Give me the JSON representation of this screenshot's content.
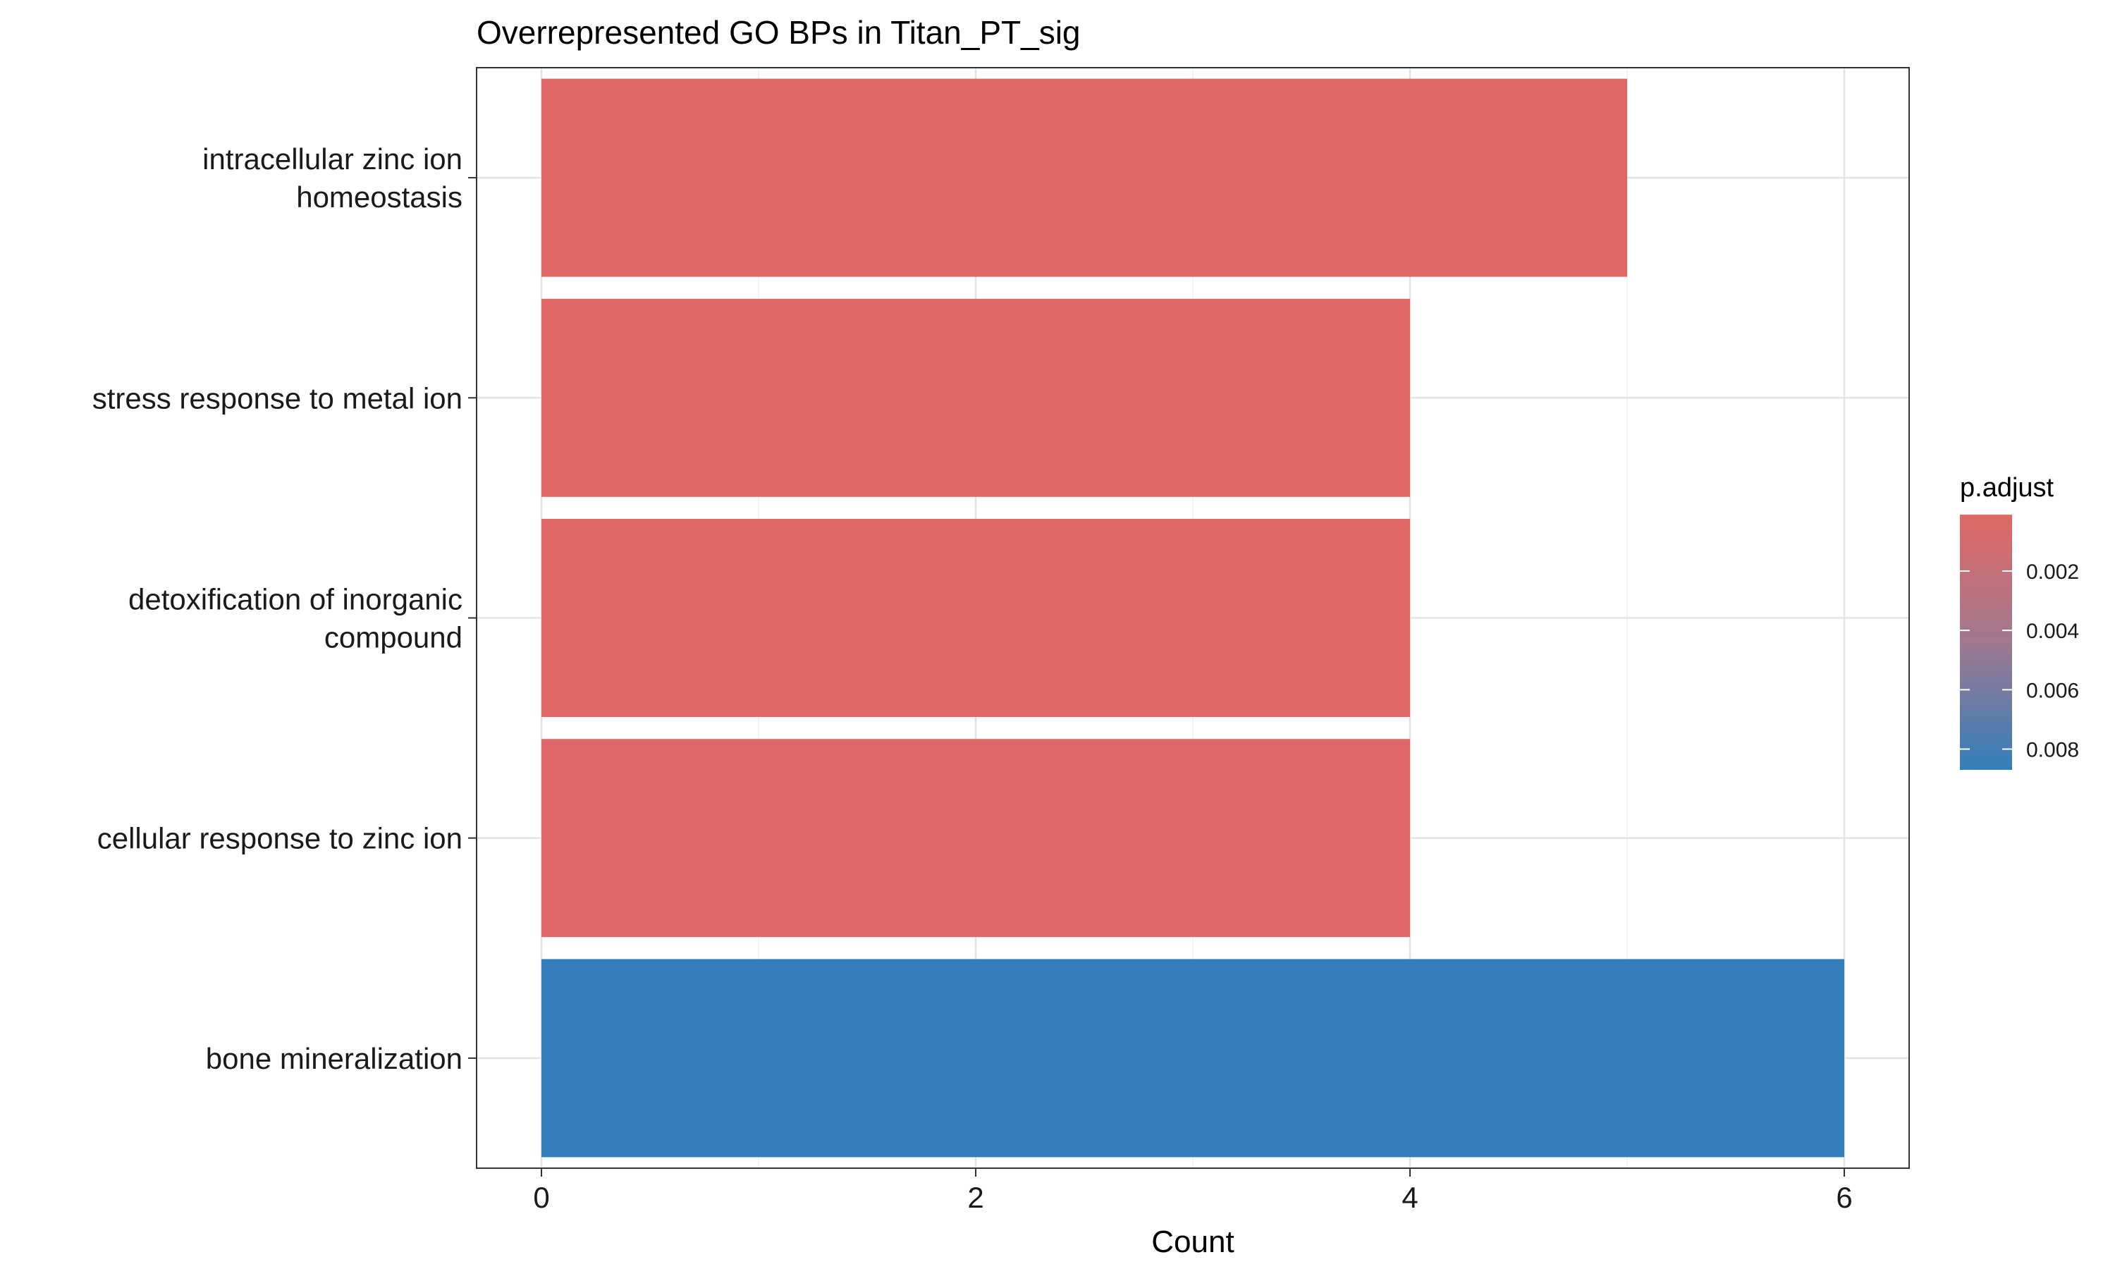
{
  "chart_data": {
    "type": "bar",
    "orientation": "horizontal",
    "title": "Overrepresented GO BPs in Titan_PT_sig",
    "xlabel": "Count",
    "ylabel": "",
    "xlim": [
      0,
      6
    ],
    "x_ticks": [
      0,
      2,
      4,
      6
    ],
    "x_tick_labels": [
      "0",
      "2",
      "4",
      "6"
    ],
    "grid": true,
    "categories": [
      [
        "intracellular zinc ion",
        "homeostasis"
      ],
      [
        "stress response to metal ion"
      ],
      [
        "detoxification of inorganic",
        "compound"
      ],
      [
        "cellular response to zinc ion"
      ],
      [
        "bone mineralization"
      ]
    ],
    "values": [
      5,
      4,
      4,
      4,
      6
    ],
    "p_adjust": [
      0.0001,
      0.0002,
      0.0002,
      0.0004,
      0.0087
    ],
    "colors": [
      "#e06865",
      "#e06865",
      "#e06865",
      "#dd6867",
      "#327fba"
    ],
    "legend": {
      "title": "p.adjust",
      "position": "right",
      "range": [
        0.0001,
        0.0087
      ],
      "ticks": [
        0.002,
        0.004,
        0.006,
        0.008
      ],
      "tick_labels": [
        "0.002",
        "0.004",
        "0.006",
        "0.008"
      ],
      "color_low": "#e06865",
      "color_high": "#327fba"
    }
  }
}
